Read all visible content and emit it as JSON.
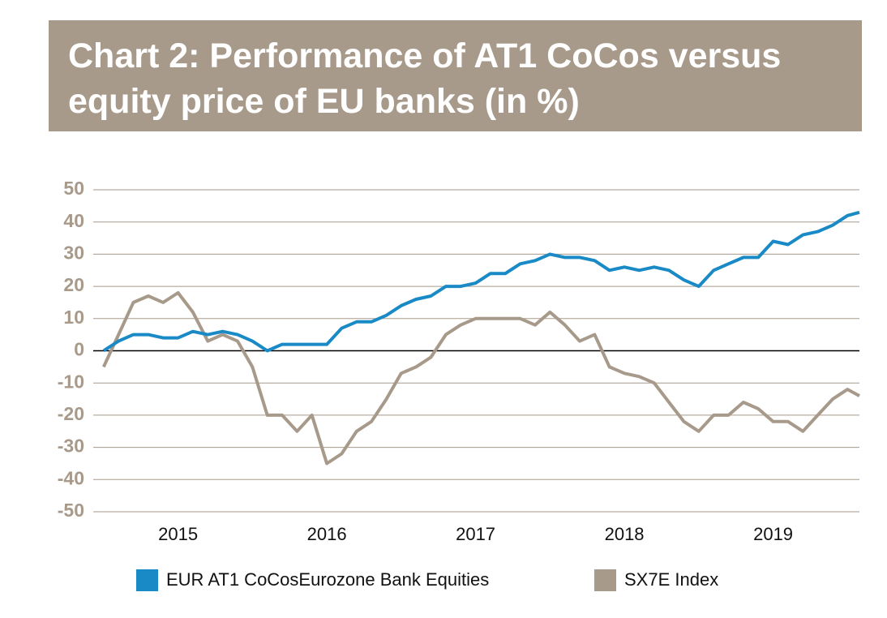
{
  "chart_data": {
    "type": "line",
    "title": "Chart 2: Performance of AT1 CoCos versus equity price of EU banks (in %)",
    "x": [
      2014.5,
      2014.6,
      2014.7,
      2014.8,
      2014.9,
      2015.0,
      2015.1,
      2015.2,
      2015.3,
      2015.4,
      2015.5,
      2015.6,
      2015.7,
      2015.8,
      2015.9,
      2016.0,
      2016.1,
      2016.2,
      2016.3,
      2016.4,
      2016.5,
      2016.6,
      2016.7,
      2016.8,
      2016.9,
      2017.0,
      2017.1,
      2017.2,
      2017.3,
      2017.4,
      2017.5,
      2017.6,
      2017.7,
      2017.8,
      2017.9,
      2018.0,
      2018.1,
      2018.2,
      2018.3,
      2018.4,
      2018.5,
      2018.6,
      2018.7,
      2018.8,
      2018.9,
      2019.0,
      2019.1,
      2019.2,
      2019.3,
      2019.4,
      2019.5,
      2019.58
    ],
    "series": [
      {
        "name": "EUR AT1 CoCosEurozone Bank Equities",
        "color": "#1a8ac6",
        "values": [
          0,
          3,
          5,
          5,
          4,
          4,
          6,
          5,
          6,
          5,
          3,
          0,
          2,
          2,
          2,
          2,
          7,
          9,
          9,
          11,
          14,
          16,
          17,
          20,
          20,
          21,
          24,
          24,
          27,
          28,
          30,
          29,
          29,
          28,
          25,
          26,
          25,
          26,
          25,
          22,
          20,
          25,
          27,
          29,
          29,
          34,
          33,
          36,
          37,
          39,
          42,
          43
        ]
      },
      {
        "name": "SX7E Index",
        "color": "#a89a8a",
        "values": [
          -5,
          5,
          15,
          17,
          15,
          18,
          12,
          3,
          5,
          3,
          -5,
          -20,
          -20,
          -25,
          -20,
          -35,
          -32,
          -25,
          -22,
          -15,
          -7,
          -5,
          -2,
          5,
          8,
          10,
          10,
          10,
          10,
          8,
          12,
          8,
          3,
          5,
          -5,
          -7,
          -8,
          -10,
          -16,
          -22,
          -25,
          -20,
          -20,
          -16,
          -18,
          -22,
          -22,
          -25,
          -20,
          -15,
          -12,
          -14
        ]
      }
    ],
    "xlim": [
      2014.43,
      2019.58
    ],
    "xticks": [
      2015,
      2016,
      2017,
      2018,
      2019
    ],
    "ylim": [
      -50,
      50
    ],
    "yticks": [
      -50,
      -40,
      -30,
      -20,
      -10,
      0,
      10,
      20,
      30,
      40,
      50
    ],
    "grid": true
  }
}
